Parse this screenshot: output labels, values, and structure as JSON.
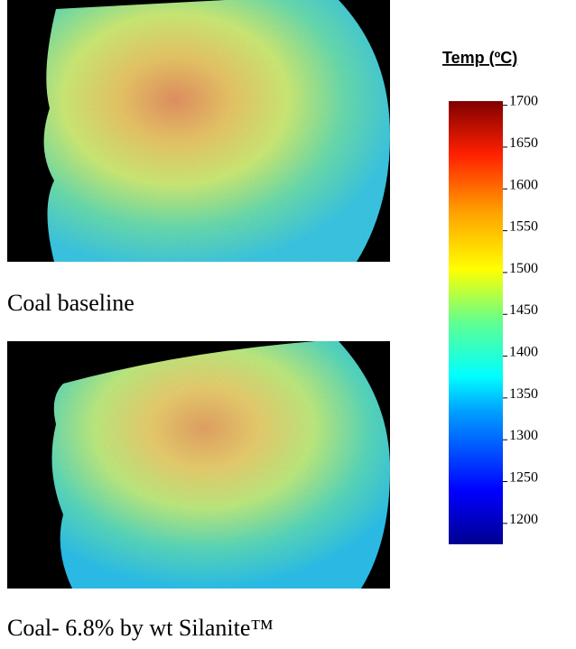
{
  "images": [
    {
      "caption": "Coal baseline"
    },
    {
      "caption": "Coal- 6.8% by wt Silanite™"
    }
  ],
  "colorbar": {
    "title": "Temp (ºC)",
    "lim": [
      1175,
      1705
    ],
    "ticks": [
      1700,
      1650,
      1600,
      1550,
      1500,
      1450,
      1400,
      1350,
      1300,
      1250,
      1200
    ]
  }
}
